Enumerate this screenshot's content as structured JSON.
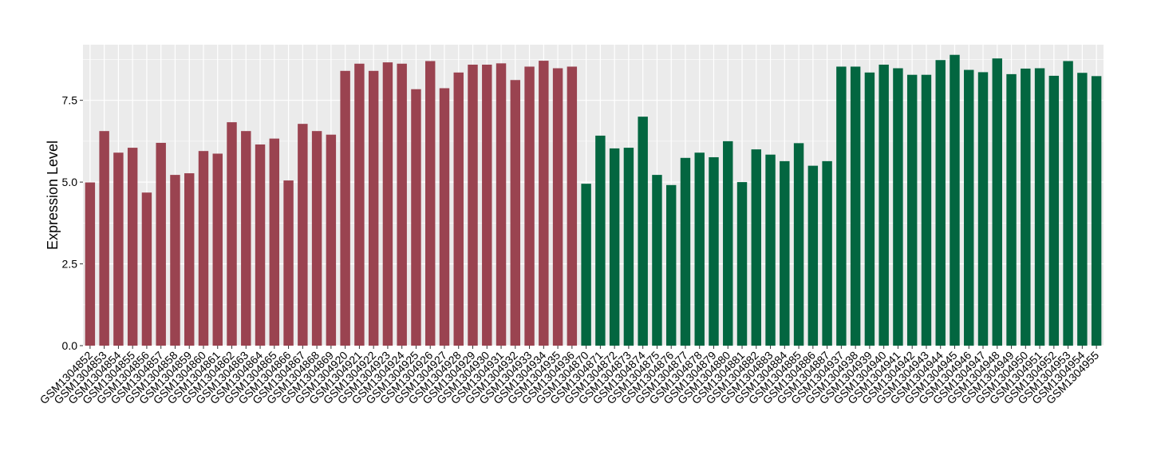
{
  "chart_data": {
    "type": "bar",
    "title": "",
    "xlabel": "",
    "ylabel": "Expression Level",
    "ylim": [
      0,
      9.2
    ],
    "yticks": [
      0.0,
      2.5,
      5.0,
      7.5
    ],
    "ytick_labels": [
      "0.0",
      "2.5",
      "5.0",
      "7.5"
    ],
    "grid": true,
    "legend": "none",
    "colors": {
      "group1": "#9a4350",
      "group2": "#036640",
      "panel_bg": "#ebebeb",
      "grid": "#ffffff"
    },
    "categories": [
      "GSM1304852",
      "GSM1304853",
      "GSM1304854",
      "GSM1304855",
      "GSM1304856",
      "GSM1304857",
      "GSM1304858",
      "GSM1304859",
      "GSM1304860",
      "GSM1304861",
      "GSM1304862",
      "GSM1304863",
      "GSM1304864",
      "GSM1304865",
      "GSM1304866",
      "GSM1304867",
      "GSM1304868",
      "GSM1304869",
      "GSM1304920",
      "GSM1304921",
      "GSM1304922",
      "GSM1304923",
      "GSM1304924",
      "GSM1304925",
      "GSM1304926",
      "GSM1304927",
      "GSM1304928",
      "GSM1304929",
      "GSM1304930",
      "GSM1304931",
      "GSM1304932",
      "GSM1304933",
      "GSM1304934",
      "GSM1304935",
      "GSM1304936",
      "GSM1304870",
      "GSM1304871",
      "GSM1304872",
      "GSM1304873",
      "GSM1304874",
      "GSM1304875",
      "GSM1304876",
      "GSM1304877",
      "GSM1304878",
      "GSM1304879",
      "GSM1304880",
      "GSM1304881",
      "GSM1304882",
      "GSM1304883",
      "GSM1304884",
      "GSM1304885",
      "GSM1304886",
      "GSM1304887",
      "GSM1304937",
      "GSM1304938",
      "GSM1304939",
      "GSM1304940",
      "GSM1304941",
      "GSM1304942",
      "GSM1304943",
      "GSM1304944",
      "GSM1304945",
      "GSM1304946",
      "GSM1304947",
      "GSM1304948",
      "GSM1304949",
      "GSM1304950",
      "GSM1304951",
      "GSM1304952",
      "GSM1304953",
      "GSM1304954",
      "GSM1304955"
    ],
    "values": [
      4.99,
      6.56,
      5.9,
      6.05,
      4.68,
      6.2,
      5.22,
      5.27,
      5.95,
      5.87,
      6.83,
      6.56,
      6.15,
      6.33,
      5.05,
      6.78,
      6.56,
      6.45,
      8.4,
      8.62,
      8.4,
      8.66,
      8.62,
      7.84,
      8.7,
      7.87,
      8.35,
      8.59,
      8.59,
      8.63,
      8.12,
      8.53,
      8.71,
      8.48,
      8.53,
      4.95,
      6.42,
      6.03,
      6.05,
      7.0,
      5.22,
      4.91,
      5.74,
      5.9,
      5.76,
      6.25,
      5.0,
      6.0,
      5.84,
      5.64,
      6.19,
      5.5,
      5.64,
      8.53,
      8.53,
      8.35,
      8.59,
      8.48,
      8.28,
      8.28,
      8.73,
      8.89,
      8.43,
      8.36,
      8.78,
      8.3,
      8.47,
      8.48,
      8.25,
      8.7,
      8.34,
      8.24
    ],
    "groups": [
      1,
      1,
      1,
      1,
      1,
      1,
      1,
      1,
      1,
      1,
      1,
      1,
      1,
      1,
      1,
      1,
      1,
      1,
      1,
      1,
      1,
      1,
      1,
      1,
      1,
      1,
      1,
      1,
      1,
      1,
      1,
      1,
      1,
      1,
      1,
      2,
      2,
      2,
      2,
      2,
      2,
      2,
      2,
      2,
      2,
      2,
      2,
      2,
      2,
      2,
      2,
      2,
      2,
      2,
      2,
      2,
      2,
      2,
      2,
      2,
      2,
      2,
      2,
      2,
      2,
      2,
      2,
      2,
      2,
      2,
      2,
      2
    ]
  }
}
